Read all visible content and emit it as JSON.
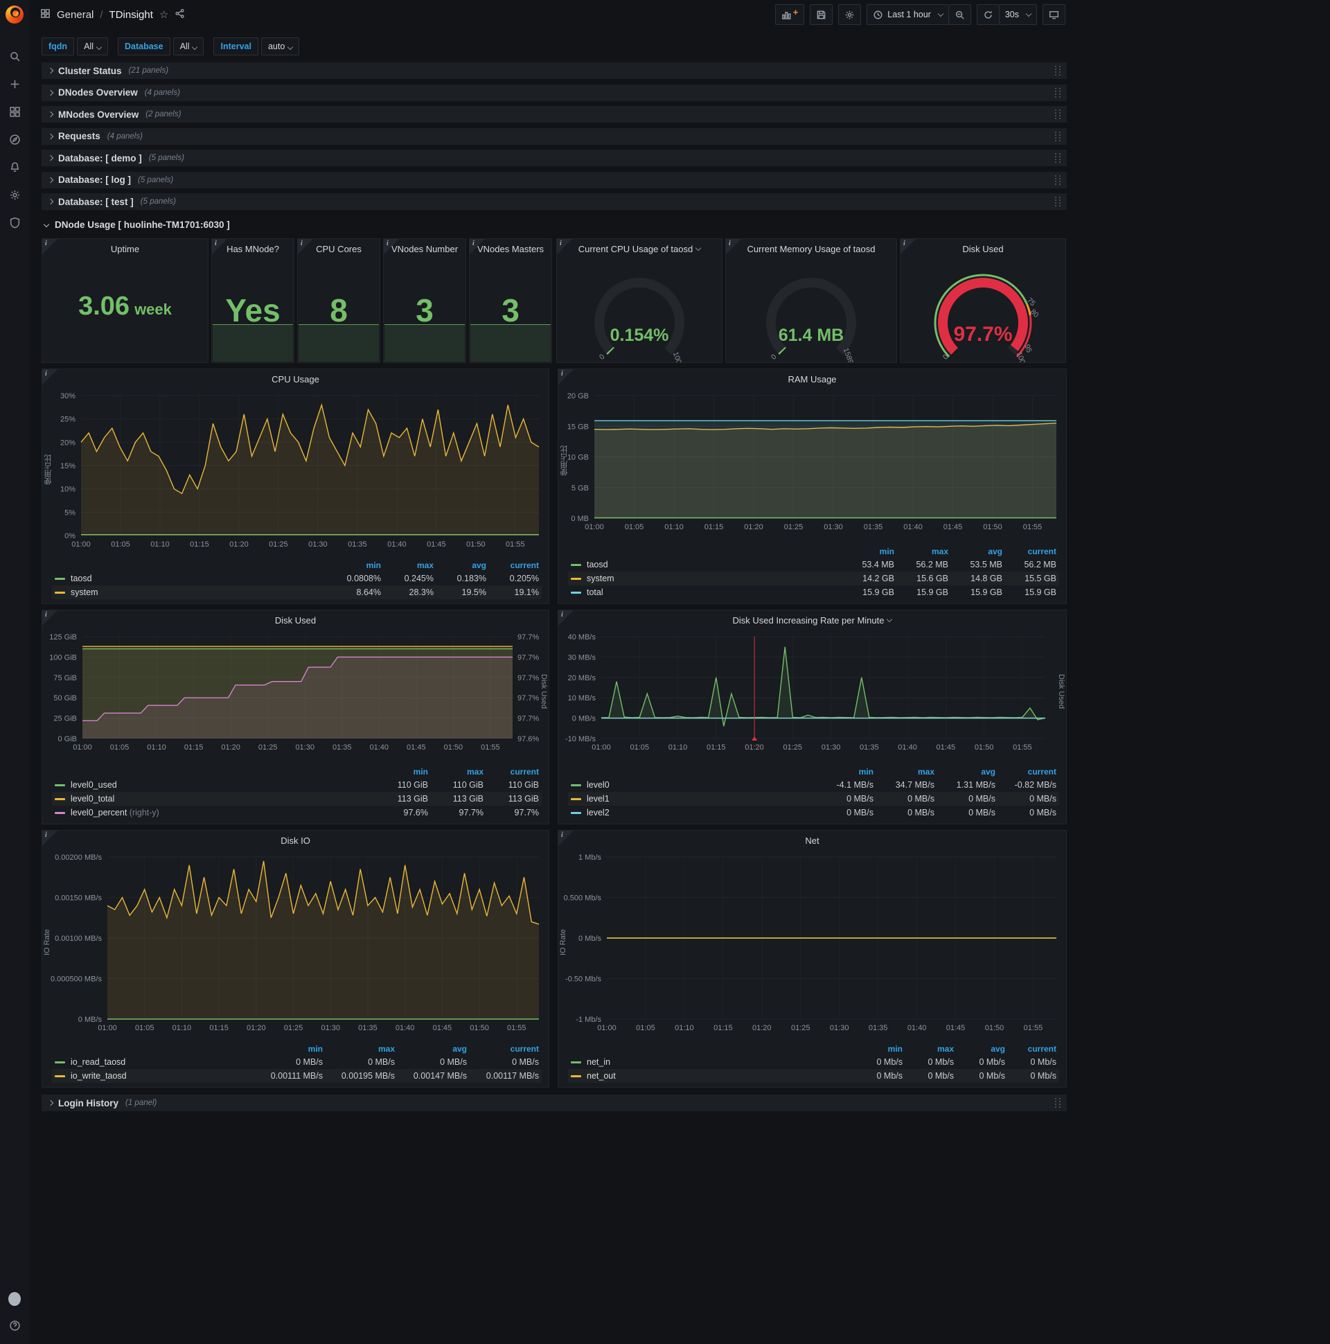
{
  "colors": {
    "green": "#73bf69",
    "yellow": "#eab839",
    "cyan": "#6ed0e0",
    "magenta": "#d683ce",
    "blue": "#33a2e5",
    "red": "#e02f44",
    "orange": "#ff9830",
    "gray_track": "#24272c"
  },
  "icons": {
    "sidebar": [
      "grafana-logo",
      "search",
      "add",
      "dashboards",
      "explore",
      "alerting",
      "configuration",
      "server-admin",
      "avatar",
      "help"
    ],
    "navbar": [
      "dashboards-grid",
      "star",
      "share"
    ],
    "toolbar": [
      "add-panel",
      "save",
      "settings",
      "clock",
      "zoom-out",
      "refresh",
      "tv"
    ]
  },
  "nav": {
    "section": "General",
    "separator": "/",
    "title": "TDinsight"
  },
  "toolbar": {
    "time_range": "Last 1 hour",
    "refresh_interval": "30s"
  },
  "variables": [
    {
      "label": "fqdn",
      "value": "All"
    },
    {
      "label": "Database",
      "value": "All"
    },
    {
      "label": "Interval",
      "value": "auto"
    }
  ],
  "rows_top": [
    {
      "title": "Cluster Status",
      "count": "(21 panels)"
    },
    {
      "title": "DNodes Overview",
      "count": "(4 panels)"
    },
    {
      "title": "MNodes Overview",
      "count": "(2 panels)"
    },
    {
      "title": "Requests",
      "count": "(4 panels)"
    },
    {
      "title": "Database: [ demo ]",
      "count": "(5 panels)"
    },
    {
      "title": "Database: [ log ]",
      "count": "(5 panels)"
    },
    {
      "title": "Database: [ test ]",
      "count": "(5 panels)"
    }
  ],
  "expanded_row": {
    "title": "DNode Usage [ huolinhe-TM1701:6030 ]"
  },
  "rows_bottom": [
    {
      "title": "Login History",
      "count": "(1 panel)"
    }
  ],
  "stats": [
    {
      "title": "Uptime",
      "value": "3.06",
      "unit": "week",
      "sparkline": false
    },
    {
      "title": "Has MNode?",
      "value": "Yes",
      "unit": "",
      "sparkline": true
    },
    {
      "title": "CPU Cores",
      "value": "8",
      "unit": "",
      "sparkline": true
    },
    {
      "title": "VNodes Number",
      "value": "3",
      "unit": "",
      "sparkline": true
    },
    {
      "title": "VNodes Masters",
      "value": "3",
      "unit": "",
      "sparkline": true
    }
  ],
  "gauges": [
    {
      "title": "Current CPU Usage of taosd",
      "has_menu": true,
      "value": "0.154%",
      "frac": 0.00154,
      "value_color": "green",
      "labels": [
        {
          "text": "0",
          "frac": 0
        },
        {
          "text": "100",
          "frac": 1
        }
      ]
    },
    {
      "title": "Current Memory Usage of taosd",
      "has_menu": false,
      "value": "61.4 MB",
      "frac": 0.0039,
      "value_color": "green",
      "labels": [
        {
          "text": "0",
          "frac": 0
        },
        {
          "text": "15892",
          "frac": 1
        }
      ]
    },
    {
      "title": "Disk Used",
      "has_menu": false,
      "value": "97.7%",
      "frac": 0.977,
      "value_color": "red",
      "thresholds": [
        {
          "to": 0.75,
          "color": "green"
        },
        {
          "to": 0.8,
          "color": "orange"
        },
        {
          "to": 1,
          "color": "red"
        }
      ],
      "labels": [
        {
          "text": "0",
          "frac": 0
        },
        {
          "text": "75",
          "frac": 0.75
        },
        {
          "text": "80",
          "frac": 0.8
        },
        {
          "text": "95",
          "frac": 0.95
        },
        {
          "text": "100",
          "frac": 1
        }
      ]
    }
  ],
  "time_ticks": [
    "01:00",
    "01:05",
    "01:10",
    "01:15",
    "01:20",
    "01:25",
    "01:30",
    "01:35",
    "01:40",
    "01:45",
    "01:50",
    "01:55"
  ],
  "time_span_min": 58,
  "chart_data": [
    {
      "id": "cpu",
      "type": "line",
      "title": "CPU Usage",
      "has_menu": false,
      "y_label": "使用占比",
      "yticks": [
        "0%",
        "5%",
        "10%",
        "15%",
        "20%",
        "25%",
        "30%"
      ],
      "ylim": [
        0,
        30
      ],
      "legend_headers": [
        "min",
        "max",
        "avg",
        "current"
      ],
      "series": [
        {
          "name": "taosd",
          "color": "green",
          "values": [
            0.2,
            0.2
          ],
          "legend": [
            "0.0808%",
            "0.245%",
            "0.183%",
            "0.205%"
          ]
        },
        {
          "name": "system",
          "color": "yellow",
          "values": [
            20,
            22,
            18,
            21,
            23,
            19,
            16,
            20,
            22,
            18,
            17,
            14,
            10,
            9,
            13,
            10,
            15,
            24,
            19,
            16,
            18,
            26,
            17,
            21,
            25,
            18,
            26,
            22,
            20,
            16,
            23,
            28,
            21,
            18,
            15,
            22,
            19,
            27,
            24,
            17,
            22,
            21,
            23,
            17,
            25,
            19,
            27,
            17,
            22,
            16,
            20,
            24,
            17,
            26,
            19,
            28,
            21,
            25,
            20,
            19
          ],
          "legend": [
            "8.64%",
            "28.3%",
            "19.5%",
            "19.1%"
          ]
        }
      ]
    },
    {
      "id": "ram",
      "type": "line",
      "title": "RAM Usage",
      "has_menu": false,
      "y_label": "使用占比",
      "yticks": [
        "0 MB",
        "5 GB",
        "10 GB",
        "15 GB",
        "20 GB"
      ],
      "ylim": [
        0,
        20
      ],
      "legend_headers": [
        "min",
        "max",
        "avg",
        "current"
      ],
      "series": [
        {
          "name": "taosd",
          "color": "green",
          "values": [
            0.055,
            0.055
          ],
          "legend": [
            "53.4 MB",
            "56.2 MB",
            "53.5 MB",
            "56.2 MB"
          ]
        },
        {
          "name": "system",
          "color": "yellow",
          "values": [
            14.5,
            14.45,
            14.5,
            14.55,
            14.5,
            14.45,
            14.5,
            14.55,
            14.6,
            14.5,
            14.45,
            14.5,
            14.6,
            14.65,
            14.6,
            14.5,
            14.6,
            14.55,
            14.6,
            14.7,
            14.75,
            14.7,
            14.65,
            14.7,
            14.8,
            14.85,
            14.8,
            14.9,
            14.95,
            14.9,
            15,
            15.05,
            15,
            15.1,
            15.15,
            15.1,
            15.2,
            15.3,
            15.4,
            15.5
          ],
          "legend": [
            "14.2 GB",
            "15.6 GB",
            "14.8 GB",
            "15.5 GB"
          ]
        },
        {
          "name": "total",
          "color": "cyan",
          "values": [
            15.9,
            15.9
          ],
          "legend": [
            "15.9 GB",
            "15.9 GB",
            "15.9 GB",
            "15.9 GB"
          ]
        }
      ]
    },
    {
      "id": "disk_used",
      "type": "line",
      "title": "Disk Used",
      "has_menu": false,
      "yticks": [
        "0 GiB",
        "25 GiB",
        "50 GiB",
        "75 GiB",
        "100 GiB",
        "125 GiB"
      ],
      "ylim": [
        0,
        125
      ],
      "right_ticks": [
        "97.6%",
        "97.7%",
        "97.7%",
        "97.7%",
        "97.7%",
        "97.7%"
      ],
      "right_ylim": [
        97.55,
        97.75
      ],
      "y_label_right": "Disk Used",
      "legend_headers": [
        "min",
        "max",
        "current"
      ],
      "series": [
        {
          "name": "level0_used",
          "color": "green",
          "values": [
            110,
            110
          ],
          "legend": [
            "110 GiB",
            "110 GiB",
            "110 GiB"
          ]
        },
        {
          "name": "level0_total",
          "color": "yellow",
          "values": [
            113,
            113
          ],
          "legend": [
            "113 GiB",
            "113 GiB",
            "113 GiB"
          ]
        },
        {
          "name": "level0_percent",
          "suffix": " (right-y)",
          "color": "magenta",
          "axis": "right",
          "values": [
            97.585,
            97.585,
            97.585,
            97.6,
            97.6,
            97.6,
            97.6,
            97.6,
            97.6,
            97.615,
            97.615,
            97.615,
            97.615,
            97.615,
            97.63,
            97.63,
            97.63,
            97.63,
            97.63,
            97.63,
            97.63,
            97.655,
            97.655,
            97.655,
            97.655,
            97.655,
            97.662,
            97.662,
            97.662,
            97.662,
            97.662,
            97.69,
            97.69,
            97.69,
            97.69,
            97.71,
            97.71,
            97.71,
            97.71,
            97.71,
            97.71,
            97.71,
            97.71,
            97.71,
            97.71,
            97.71,
            97.71,
            97.71,
            97.71,
            97.71,
            97.71,
            97.71,
            97.71,
            97.71,
            97.71,
            97.71,
            97.71,
            97.71,
            97.71,
            97.71
          ],
          "legend": [
            "97.6%",
            "97.7%",
            "97.7%"
          ]
        }
      ]
    },
    {
      "id": "disk_rate",
      "type": "line",
      "title": "Disk Used Increasing Rate per Minute",
      "has_menu": true,
      "yticks": [
        "-10 MB/s",
        "0 MB/s",
        "10 MB/s",
        "20 MB/s",
        "30 MB/s",
        "40 MB/s"
      ],
      "ylim": [
        -10,
        40
      ],
      "y_label_right": "Disk Used",
      "annotation_x_frac": 0.345,
      "legend_headers": [
        "min",
        "max",
        "avg",
        "current"
      ],
      "series": [
        {
          "name": "level0",
          "color": "green",
          "values": [
            0.2,
            0.3,
            18,
            0.5,
            0.2,
            0.4,
            12,
            0.3,
            0.2,
            0.3,
            1,
            0.3,
            0.2,
            0.4,
            0.3,
            20,
            -4,
            12,
            0.4,
            0.2,
            0.3,
            0.4,
            0.2,
            0.3,
            35,
            0.4,
            0.2,
            1.5,
            0.3,
            0.4,
            0.2,
            0.4,
            0.3,
            0.2,
            20,
            0.4,
            0.2,
            0.3,
            0.4,
            0.2,
            0.3,
            0.4,
            0.2,
            0.4,
            0.3,
            0.2,
            0.4,
            0.3,
            0.2,
            0.4,
            0.3,
            0.2,
            0.4,
            0.3,
            0.2,
            0.4,
            5,
            -0.8,
            0.1
          ],
          "legend": [
            "-4.1 MB/s",
            "34.7 MB/s",
            "1.31 MB/s",
            "-0.82 MB/s"
          ]
        },
        {
          "name": "level1",
          "color": "yellow",
          "values": [
            0,
            0
          ],
          "legend": [
            "0 MB/s",
            "0 MB/s",
            "0 MB/s",
            "0 MB/s"
          ]
        },
        {
          "name": "level2",
          "color": "cyan",
          "values": [
            0,
            0
          ],
          "legend": [
            "0 MB/s",
            "0 MB/s",
            "0 MB/s",
            "0 MB/s"
          ]
        }
      ]
    },
    {
      "id": "disk_io",
      "type": "line",
      "title": "Disk IO",
      "has_menu": false,
      "y_label": "IO Rate",
      "yticks": [
        "0 MB/s",
        "0.000500 MB/s",
        "0.00100 MB/s",
        "0.00150 MB/s",
        "0.00200 MB/s"
      ],
      "ylim": [
        0,
        0.002
      ],
      "legend_headers": [
        "min",
        "max",
        "avg",
        "current"
      ],
      "series": [
        {
          "name": "io_read_taosd",
          "color": "green",
          "values": [
            0,
            0
          ],
          "legend": [
            "0 MB/s",
            "0 MB/s",
            "0 MB/s",
            "0 MB/s"
          ]
        },
        {
          "name": "io_write_taosd",
          "color": "yellow",
          "values": [
            0.0014,
            0.00135,
            0.0015,
            0.00128,
            0.0014,
            0.0016,
            0.00132,
            0.0015,
            0.00125,
            0.0016,
            0.0014,
            0.0019,
            0.0013,
            0.00175,
            0.00128,
            0.0015,
            0.0014,
            0.00185,
            0.0013,
            0.0016,
            0.00145,
            0.00195,
            0.00125,
            0.0015,
            0.0018,
            0.0013,
            0.00165,
            0.0014,
            0.00155,
            0.0013,
            0.0017,
            0.00135,
            0.0016,
            0.00128,
            0.00185,
            0.0014,
            0.0015,
            0.00132,
            0.00175,
            0.0013,
            0.0019,
            0.00138,
            0.0016,
            0.00128,
            0.0017,
            0.00142,
            0.00155,
            0.0013,
            0.0018,
            0.00135,
            0.0016,
            0.00127,
            0.00168,
            0.0014,
            0.00152,
            0.0013,
            0.00175,
            0.0012,
            0.00117
          ],
          "legend": [
            "0.00111 MB/s",
            "0.00195 MB/s",
            "0.00147 MB/s",
            "0.00117 MB/s"
          ]
        }
      ]
    },
    {
      "id": "net",
      "type": "line",
      "title": "Net",
      "has_menu": false,
      "y_label": "IO Rate",
      "yticks": [
        "-1 Mb/s",
        "-0.50 Mb/s",
        "0 Mb/s",
        "0.500 Mb/s",
        "1 Mb/s"
      ],
      "ylim": [
        -1,
        1
      ],
      "legend_headers": [
        "min",
        "max",
        "avg",
        "current"
      ],
      "series": [
        {
          "name": "net_in",
          "color": "green",
          "values": [
            0,
            0
          ],
          "legend": [
            "0 Mb/s",
            "0 Mb/s",
            "0 Mb/s",
            "0 Mb/s"
          ]
        },
        {
          "name": "net_out",
          "color": "yellow",
          "values": [
            0,
            0
          ],
          "legend": [
            "0 Mb/s",
            "0 Mb/s",
            "0 Mb/s",
            "0 Mb/s"
          ]
        }
      ]
    }
  ]
}
